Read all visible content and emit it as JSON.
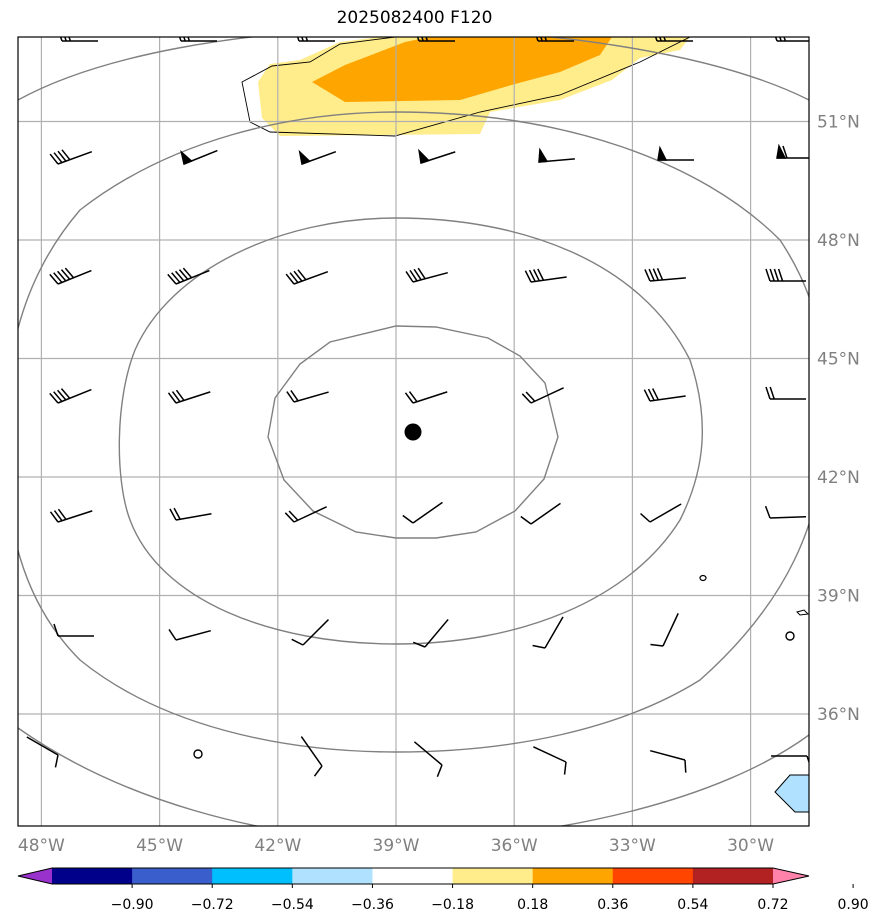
{
  "title": "2025082400 F120",
  "map": {
    "lon_range": [
      -49,
      -28.5
    ],
    "lat_range": [
      33,
      53
    ],
    "lon_ticks": [
      {
        "value": -48,
        "label": "48°W"
      },
      {
        "value": -45,
        "label": "45°W"
      },
      {
        "value": -42,
        "label": "42°W"
      },
      {
        "value": -39,
        "label": "39°W"
      },
      {
        "value": -36,
        "label": "36°W"
      },
      {
        "value": -33,
        "label": "33°W"
      },
      {
        "value": -30,
        "label": "30°W"
      }
    ],
    "lat_ticks": [
      {
        "value": 36,
        "label": "36°N"
      },
      {
        "value": 39,
        "label": "39°N"
      },
      {
        "value": 42,
        "label": "42°N"
      },
      {
        "value": 45,
        "label": "45°N"
      },
      {
        "value": 48,
        "label": "48°N"
      },
      {
        "value": 51,
        "label": "51°N"
      }
    ],
    "center_marker": {
      "lon": -38.5,
      "lat": 43.1
    },
    "colors": {
      "grid": "#b0b0b0",
      "contour": "#808080",
      "tick_label": "#808080"
    }
  },
  "colorbar": {
    "levels": [
      "−0.90",
      "−0.72",
      "−0.54",
      "−0.36",
      "−0.18",
      "0.18",
      "0.36",
      "0.54",
      "0.72",
      "0.90"
    ],
    "colors": [
      "#9932cc",
      "#00008b",
      "#3a5fcd",
      "#00bfff",
      "#b0e2ff",
      "#ffffff",
      "#ffec8b",
      "#ffa500",
      "#ff4500",
      "#b22222",
      "#ff82ab"
    ]
  }
}
